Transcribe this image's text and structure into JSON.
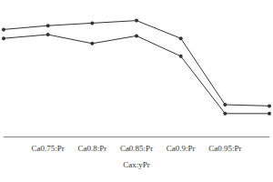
{
  "chart_data": {
    "type": "line",
    "x_label": "Cax:yPr",
    "categories": [
      null,
      "Ca0.75:Pr",
      "Ca0.8:Pr",
      "Ca0.85:Pr",
      "Ca0.9:Pr",
      "Ca0.95:Pr",
      null
    ],
    "series": [
      {
        "color": "#333333",
        "values": [
          84,
          87,
          89,
          91,
          77,
          25,
          24
        ]
      },
      {
        "color": "#333333",
        "values": [
          77,
          80,
          73,
          79,
          63,
          18,
          18
        ]
      }
    ],
    "ylim": [
      0,
      100
    ],
    "yticks": [
      0,
      50,
      100
    ],
    "grid": false,
    "tick_labels": "x",
    "marker": "circle"
  }
}
